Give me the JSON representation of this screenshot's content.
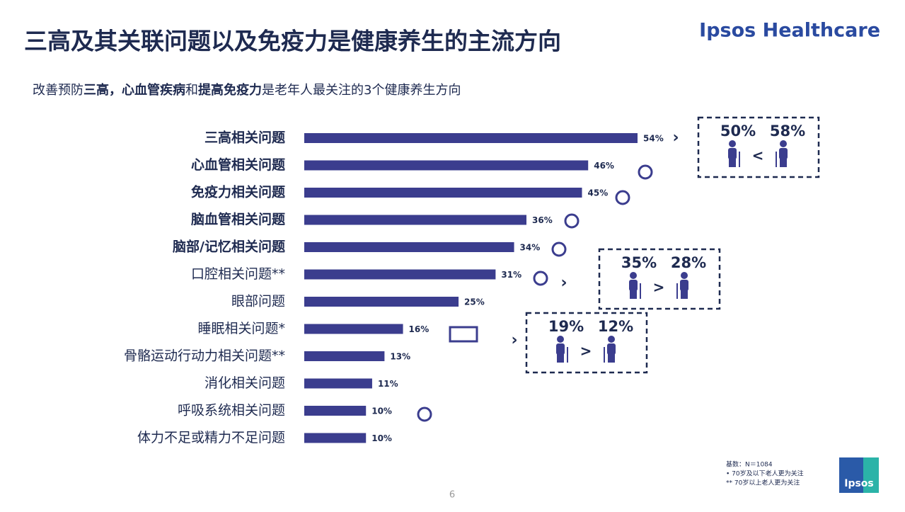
{
  "header": {
    "title": "三高及其关联问题以及免疫力是健康养生的主流方向",
    "brand": "Ipsos Healthcare"
  },
  "subtitle": [
    {
      "text": "改善预防",
      "bold": false
    },
    {
      "text": "三高，心血管疾病",
      "bold": true
    },
    {
      "text": "和",
      "bold": false
    },
    {
      "text": "提高免疫力",
      "bold": true
    },
    {
      "text": "是老年人最关注的3个健康养生方向",
      "bold": false
    }
  ],
  "chart_data": {
    "type": "bar",
    "orientation": "horizontal",
    "color": "#3b3d8e",
    "categories": [
      "三高相关问题",
      "心血管相关问题",
      "免疫力相关问题",
      "脑血管相关问题",
      "脑部/记忆相关问题",
      "口腔相关问题**",
      "眼部问题",
      "睡眠相关问题*",
      "骨骼运动行动力相关问题**",
      "消化相关问题",
      "呼吸系统相关问题",
      "体力不足或精力不足问题"
    ],
    "category_bold": [
      true,
      true,
      true,
      true,
      true,
      false,
      false,
      false,
      false,
      false,
      false,
      false
    ],
    "values": [
      54,
      46,
      45,
      36,
      34,
      31,
      25,
      16,
      13,
      11,
      10,
      10
    ],
    "value_labels": [
      "54%",
      "46%",
      "45%",
      "36%",
      "34%",
      "31%",
      "25%",
      "16%",
      "13%",
      "11%",
      "10%",
      "10%"
    ]
  },
  "callouts": [
    {
      "row": 0,
      "left": "50%",
      "sign": "<",
      "right": "58%"
    },
    {
      "row": 5,
      "left": "35%",
      "sign": ">",
      "right": "28%"
    },
    {
      "row": 7,
      "left": "19%",
      "sign": ">",
      "right": "12%"
    }
  ],
  "footnotes": [
    "基数：N＝1084",
    "•     70岁及以下老人更为关注",
    "**   70岁以上老人更为关注"
  ],
  "logo": "Ipsos",
  "page_number": "6"
}
